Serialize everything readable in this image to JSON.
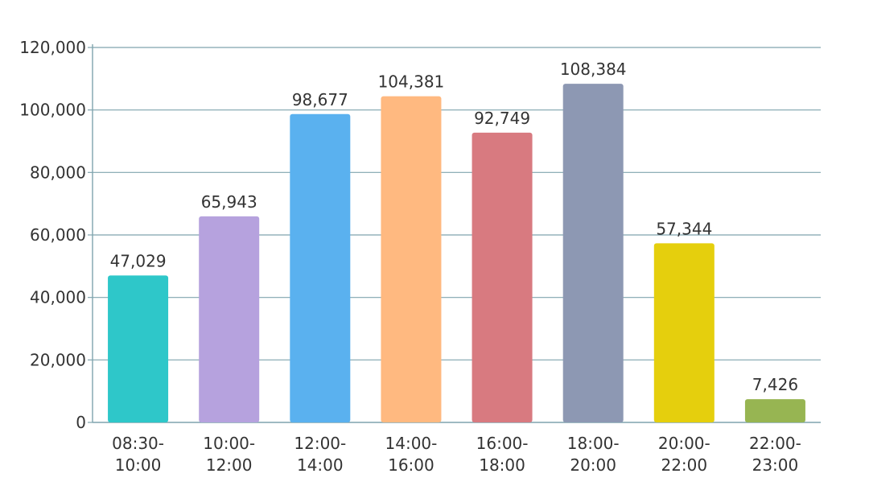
{
  "chart_data": {
    "type": "bar",
    "title": "",
    "xlabel": "",
    "ylabel": "",
    "ylim": [
      0,
      120000
    ],
    "yticks": [
      "0",
      "20,000",
      "40,000",
      "60,000",
      "80,000",
      "100,000",
      "120,000"
    ],
    "ytick_values": [
      0,
      20000,
      40000,
      60000,
      80000,
      100000,
      120000
    ],
    "grid": true,
    "legend": "none",
    "categories": [
      [
        "08:30-",
        "10:00"
      ],
      [
        "10:00-",
        "12:00"
      ],
      [
        "12:00-",
        "14:00"
      ],
      [
        "14:00-",
        "16:00"
      ],
      [
        "16:00-",
        "18:00"
      ],
      [
        "18:00-",
        "20:00"
      ],
      [
        "20:00-",
        "22:00"
      ],
      [
        "22:00-",
        "23:00"
      ]
    ],
    "values": [
      47029,
      65943,
      98677,
      104381,
      92749,
      108384,
      57344,
      7426
    ],
    "value_labels": [
      "47,029",
      "65,943",
      "98,677",
      "104,381",
      "92,749",
      "108,384",
      "57,344",
      "7,426"
    ],
    "colors": [
      "#2ec7c9",
      "#b6a2de",
      "#5ab1ef",
      "#ffb980",
      "#d87a80",
      "#8d98b3",
      "#e5cf0d",
      "#97b552"
    ],
    "grid_color": "#7fa4ae",
    "text_color": "#333333"
  }
}
